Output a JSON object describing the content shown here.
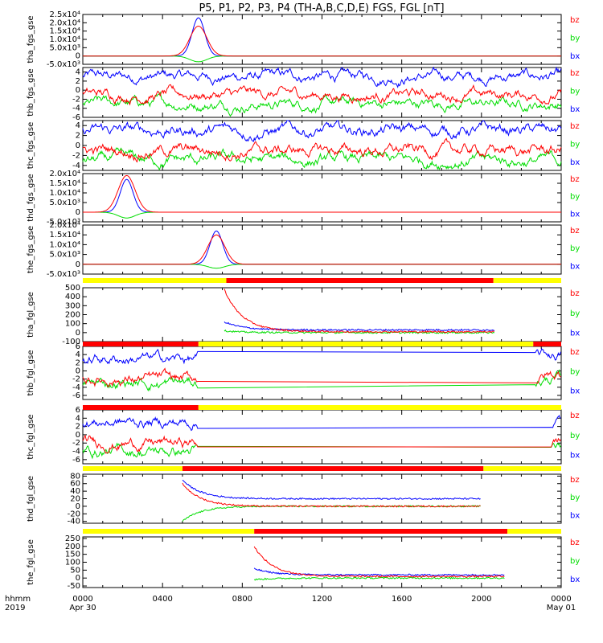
{
  "title": "P5, P1, P2, P3, P4 (TH-A,B,C,D,E) FGS, FGL [nT]",
  "colors": {
    "bz": "#ff0000",
    "by": "#00dd00",
    "bx": "#0000ff",
    "bar_red": "#ff0000",
    "bar_yellow": "#ffff00"
  },
  "legend": [
    "bz",
    "by",
    "bx"
  ],
  "xaxis": {
    "label_top": "hhmm",
    "label_bottom": "2019",
    "ticks": [
      "0000",
      "0400",
      "0800",
      "1200",
      "1600",
      "2000",
      "0000"
    ],
    "tick_hours": [
      0,
      4,
      8,
      12,
      16,
      20,
      24
    ],
    "sublabels": [
      "Apr 30",
      "",
      "",
      "",
      "",
      "",
      "May 01"
    ]
  },
  "chart_data": [
    {
      "type": "line",
      "ylabel": "tha_fgs_gse",
      "yticks": [
        "2.5x10⁴",
        "2.0x10⁴",
        "1.5x10⁴",
        "1.0x10⁴",
        "5.0x10³",
        "0",
        "-5.0x10³"
      ],
      "ytick_values": [
        25000,
        20000,
        15000,
        10000,
        5000,
        0,
        -5000
      ],
      "ylim": [
        -5000,
        25000
      ],
      "x_units": "hours",
      "kind": "spike",
      "center_hour": 5.8,
      "peaks": {
        "bz": 18000,
        "by": -3500,
        "bx": 23000
      }
    },
    {
      "type": "line",
      "ylabel": "thb_fgs_gse",
      "yticks": [
        "4",
        "2",
        "0",
        "-2",
        "-4",
        "-6"
      ],
      "ytick_values": [
        4,
        2,
        0,
        -2,
        -4,
        -6
      ],
      "ylim": [
        -6,
        5
      ],
      "x_units": "hours",
      "kind": "noise",
      "levels": {
        "bz": -1,
        "by": -3,
        "bx": 3
      }
    },
    {
      "type": "line",
      "ylabel": "thc_fgs_gse",
      "yticks": [
        "4",
        "2",
        "0",
        "-2",
        "-4"
      ],
      "ytick_values": [
        4,
        2,
        0,
        -2,
        -4
      ],
      "ylim": [
        -5,
        5
      ],
      "x_units": "hours",
      "kind": "noise",
      "levels": {
        "bz": -1,
        "by": -3,
        "bx": 3
      }
    },
    {
      "type": "line",
      "ylabel": "thd_fgs_gse",
      "yticks": [
        "2.0x10⁴",
        "1.5x10⁴",
        "1.0x10⁴",
        "5.0x10³",
        "0",
        "-5.0x10³"
      ],
      "ytick_values": [
        20000,
        15000,
        10000,
        5000,
        0,
        -5000
      ],
      "ylim": [
        -5000,
        20000
      ],
      "x_units": "hours",
      "kind": "spike",
      "center_hour": 2.2,
      "peaks": {
        "bz": 19000,
        "by": -3000,
        "bx": 17000
      }
    },
    {
      "type": "line",
      "ylabel": "the_fgs_gse",
      "yticks": [
        "2.0x10⁴",
        "1.5x10⁴",
        "1.0x10⁴",
        "5.0x10³",
        "0",
        "-5.0x10³"
      ],
      "ytick_values": [
        20000,
        15000,
        10000,
        5000,
        0,
        -5000
      ],
      "ylim": [
        -5000,
        20000
      ],
      "x_units": "hours",
      "kind": "spike",
      "center_hour": 6.7,
      "peaks": {
        "bz": 15000,
        "by": -2000,
        "bx": 17000
      }
    },
    {
      "type": "line",
      "ylabel": "tha_fgl_gse",
      "yticks": [
        "500",
        "400",
        "300",
        "200",
        "100",
        "0",
        "-100"
      ],
      "ytick_values": [
        500,
        400,
        300,
        200,
        100,
        0,
        -100
      ],
      "ylim": [
        -100,
        500
      ],
      "x_units": "hours",
      "kind": "decay",
      "start_hour": 7.1,
      "end_hour": 20.7,
      "start_values": {
        "bz": 480,
        "by": 20,
        "bx": 120
      },
      "end_values": {
        "bz": 10,
        "by": 0,
        "bx": 30
      }
    },
    {
      "type": "line",
      "ylabel": "thb_fgl_gse",
      "yticks": [
        "6",
        "4",
        "2",
        "0",
        "-2",
        "-4",
        "-6"
      ],
      "ytick_values": [
        6,
        4,
        2,
        0,
        -2,
        -4,
        -6
      ],
      "ylim": [
        -7,
        6
      ],
      "x_units": "hours",
      "kind": "gap",
      "seg1": [
        0,
        5.8
      ],
      "seg2": [
        22.7,
        24
      ],
      "levels": {
        "bz": -2,
        "by": -3,
        "bx": 3
      }
    },
    {
      "type": "line",
      "ylabel": "thc_fgl_gse",
      "yticks": [
        "6",
        "4",
        "2",
        "0",
        "-2",
        "-4",
        "-6"
      ],
      "ytick_values": [
        6,
        4,
        2,
        0,
        -2,
        -4,
        -6
      ],
      "ylim": [
        -7,
        6
      ],
      "x_units": "hours",
      "kind": "gap",
      "seg1": [
        0,
        5.8
      ],
      "seg2": [
        23.5,
        24
      ],
      "levels": {
        "bz": -2,
        "by": -4,
        "bx": 3
      }
    },
    {
      "type": "line",
      "ylabel": "thd_fgl_gse",
      "yticks": [
        "80",
        "60",
        "40",
        "20",
        "0",
        "-20",
        "-40"
      ],
      "ytick_values": [
        80,
        60,
        40,
        20,
        0,
        -20,
        -40
      ],
      "ylim": [
        -45,
        85
      ],
      "x_units": "hours",
      "kind": "decay",
      "start_hour": 5.0,
      "end_hour": 20.0,
      "start_values": {
        "bz": 60,
        "by": -40,
        "bx": 70
      },
      "end_values": {
        "bz": 0,
        "by": 0,
        "bx": 20
      }
    },
    {
      "type": "line",
      "ylabel": "the_fgl_gse",
      "yticks": [
        "250",
        "200",
        "150",
        "100",
        "50",
        "0",
        "-50"
      ],
      "ytick_values": [
        250,
        200,
        150,
        100,
        50,
        0,
        -50
      ],
      "ylim": [
        -60,
        260
      ],
      "x_units": "hours",
      "kind": "decay",
      "start_hour": 8.6,
      "end_hour": 21.2,
      "start_values": {
        "bz": 200,
        "by": -10,
        "bx": 60
      },
      "end_values": {
        "bz": 10,
        "by": 0,
        "bx": 20
      }
    }
  ],
  "status_bars": [
    {
      "segments": [
        {
          "from": 0,
          "to": 7.2,
          "color": "yellow"
        },
        {
          "from": 7.2,
          "to": 20.6,
          "color": "red"
        },
        {
          "from": 20.6,
          "to": 24,
          "color": "yellow"
        }
      ]
    },
    {
      "segments": [
        {
          "from": 0,
          "to": 5.8,
          "color": "red"
        },
        {
          "from": 5.8,
          "to": 22.6,
          "color": "yellow"
        },
        {
          "from": 22.6,
          "to": 24,
          "color": "red"
        }
      ]
    },
    {
      "segments": [
        {
          "from": 0,
          "to": 5.8,
          "color": "red"
        },
        {
          "from": 5.8,
          "to": 24,
          "color": "yellow"
        }
      ]
    },
    {
      "segments": [
        {
          "from": 0,
          "to": 5.0,
          "color": "yellow"
        },
        {
          "from": 5.0,
          "to": 20.1,
          "color": "red"
        },
        {
          "from": 20.1,
          "to": 24,
          "color": "yellow"
        }
      ]
    },
    {
      "segments": [
        {
          "from": 0,
          "to": 8.6,
          "color": "yellow"
        },
        {
          "from": 8.6,
          "to": 21.3,
          "color": "red"
        },
        {
          "from": 21.3,
          "to": 24,
          "color": "yellow"
        }
      ]
    }
  ]
}
